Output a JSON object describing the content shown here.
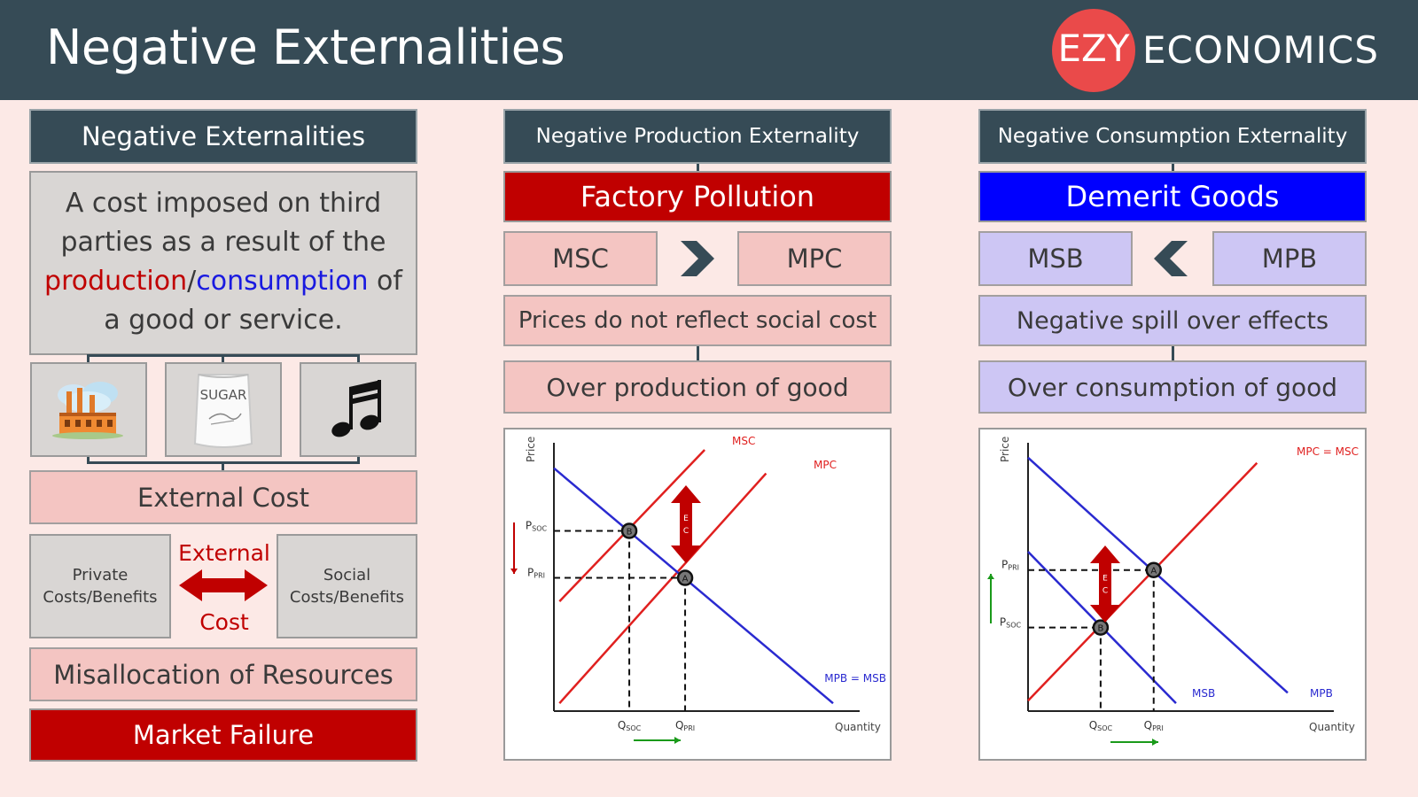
{
  "header": {
    "title": "Negative Externalities",
    "logo_ezy": "EZY",
    "logo_economics": "ECONOMICS"
  },
  "left": {
    "title": "Negative Externalities",
    "definition": {
      "line1": "A cost imposed on third",
      "line2": "parties as a result of the",
      "production": "production",
      "slash": "/",
      "consumption": "consumption",
      "of": " of",
      "line4": "a good or service."
    },
    "icons": [
      {
        "name": "factory-icon"
      },
      {
        "name": "sugar-bag-icon",
        "label": "SUGAR"
      },
      {
        "name": "music-note-icon"
      }
    ],
    "external_cost": "External Cost",
    "private": "Private Costs/Benefits",
    "social": "Social Costs/Benefits",
    "external_top": "External",
    "external_bottom": "Cost",
    "misallocation": "Misallocation of Resources",
    "market_failure": "Market Failure"
  },
  "middle": {
    "title": "Negative Production Externality",
    "banner": "Factory Pollution",
    "left_box": "MSC",
    "comparator": "greater-than",
    "right_box": "MPC",
    "row1": "Prices do not reflect social cost",
    "row2": "Over production of good"
  },
  "right": {
    "title": "Negative Consumption Externality",
    "banner": "Demerit Goods",
    "left_box": "MSB",
    "comparator": "less-than",
    "right_box": "MPB",
    "row1": "Negative spill over effects",
    "row2": "Over consumption of good"
  },
  "colors": {
    "header": "#364b56",
    "red": "#c00000",
    "blue": "#0000ff",
    "pink": "#f4c5c2",
    "lavender": "#cdc6f4",
    "background": "#fce9e6",
    "logo": "#ea4a4a"
  },
  "chart_data": [
    {
      "type": "line",
      "xlabel": "Quantity",
      "ylabel": "Price",
      "x_ticks": [
        "Q_SOC",
        "Q_PRI"
      ],
      "y_ticks": [
        "P_SOC",
        "P_PRI"
      ],
      "series": [
        {
          "name": "MSC",
          "color": "#e0201f",
          "points": [
            [
              0.02,
              0.42
            ],
            [
              0.54,
              1.0
            ]
          ]
        },
        {
          "name": "MPC",
          "color": "#e0201f",
          "points": [
            [
              0.02,
              0.03
            ],
            [
              0.76,
              0.91
            ]
          ]
        },
        {
          "name": "MPB = MSB",
          "color": "#2a2ad0",
          "points": [
            [
              0.0,
              0.93
            ],
            [
              1.0,
              0.03
            ]
          ]
        }
      ],
      "points": [
        {
          "label": "B",
          "x": 0.27,
          "y": 0.69
        },
        {
          "label": "A",
          "x": 0.47,
          "y": 0.51
        }
      ],
      "ec_arrow": "EC",
      "price_arrow": "down",
      "quantity_arrow": "right"
    },
    {
      "type": "line",
      "xlabel": "Quantity",
      "ylabel": "Price",
      "x_ticks": [
        "Q_SOC",
        "Q_PRI"
      ],
      "y_ticks": [
        "P_PRI",
        "P_SOC"
      ],
      "series": [
        {
          "name": "MPC = MSC",
          "color": "#e0201f",
          "points": [
            [
              0.0,
              0.04
            ],
            [
              0.82,
              0.95
            ]
          ]
        },
        {
          "name": "MPB",
          "color": "#2a2ad0",
          "points": [
            [
              0.0,
              0.97
            ],
            [
              0.93,
              0.07
            ]
          ]
        },
        {
          "name": "MSB",
          "color": "#2a2ad0",
          "points": [
            [
              0.0,
              0.61
            ],
            [
              0.53,
              0.03
            ]
          ]
        }
      ],
      "points": [
        {
          "label": "A",
          "x": 0.45,
          "y": 0.54
        },
        {
          "label": "B",
          "x": 0.26,
          "y": 0.32
        }
      ],
      "ec_arrow": "EC",
      "price_arrow": "up",
      "quantity_arrow": "right"
    }
  ]
}
